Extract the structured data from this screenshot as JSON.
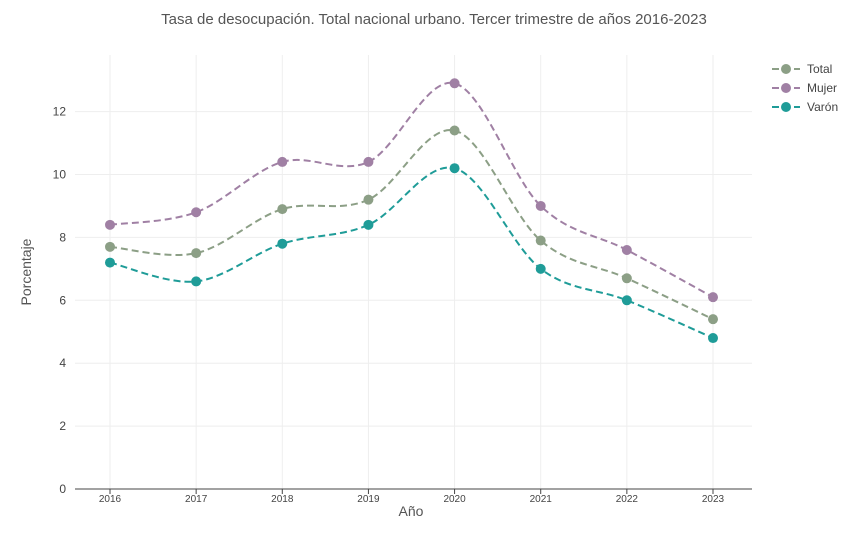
{
  "chart_data": {
    "type": "line",
    "title": "Tasa de desocupación. Total nacional urbano. Tercer trimestre de años 2016-2023",
    "xlabel": "Año",
    "ylabel": "Porcentaje",
    "categories": [
      "2016",
      "2017",
      "2018",
      "2019",
      "2020",
      "2021",
      "2022",
      "2023"
    ],
    "ylim": [
      0,
      13.8
    ],
    "yticks": [
      0,
      2,
      4,
      6,
      8,
      10,
      12
    ],
    "grid": true,
    "legend_position": "top-right",
    "line_style": "dashed, smoothed, with markers",
    "series": [
      {
        "name": "Total",
        "color": "#8c9f86",
        "values": [
          7.7,
          7.5,
          8.9,
          9.2,
          11.4,
          7.9,
          6.7,
          5.4
        ]
      },
      {
        "name": "Mujer",
        "color": "#a080a4",
        "values": [
          8.4,
          8.8,
          10.4,
          10.4,
          12.9,
          9.0,
          7.6,
          6.1
        ]
      },
      {
        "name": "Varón",
        "color": "#1f9c98",
        "values": [
          7.2,
          6.6,
          7.8,
          8.4,
          10.2,
          7.0,
          6.0,
          4.8
        ]
      }
    ]
  }
}
